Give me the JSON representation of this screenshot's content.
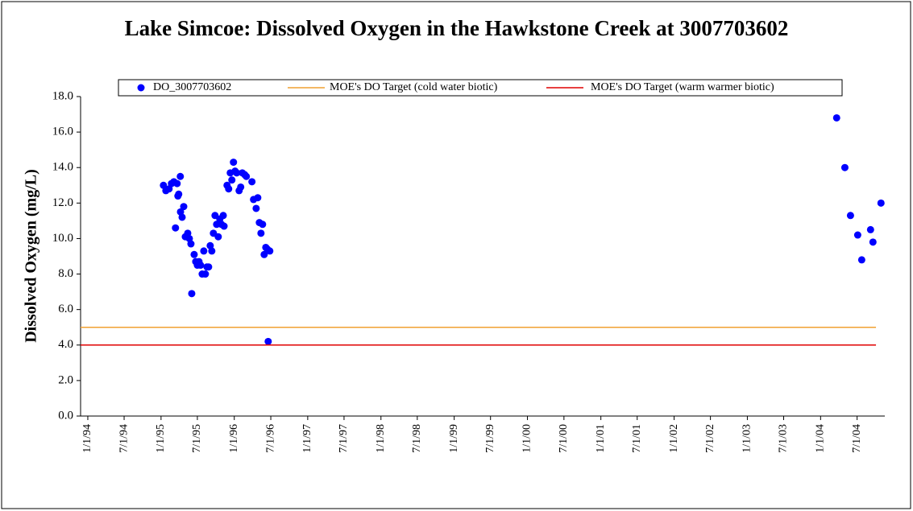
{
  "chart_data": {
    "type": "scatter",
    "title": "Lake Simcoe: Dissolved Oxygen in the Hawkstone Creek at 3007703602",
    "ylabel": "Dissolved Oxygen (mg/L)",
    "legend": "top",
    "grid": false,
    "xlim": [
      "1993-11-26",
      "2004-11-16"
    ],
    "ylim": [
      0,
      18
    ],
    "yticks": [
      {
        "value": 0,
        "label": "0.0"
      },
      {
        "value": 2,
        "label": "2.0"
      },
      {
        "value": 4,
        "label": "4.0"
      },
      {
        "value": 6,
        "label": "6.0"
      },
      {
        "value": 8,
        "label": "8.0"
      },
      {
        "value": 10,
        "label": "10.0"
      },
      {
        "value": 12,
        "label": "12.0"
      },
      {
        "value": 14,
        "label": "14.0"
      },
      {
        "value": 16,
        "label": "16.0"
      },
      {
        "value": 18,
        "label": "18.0"
      }
    ],
    "xticks": [
      {
        "value": "1994-01-01",
        "label": "1/1/94"
      },
      {
        "value": "1994-07-01",
        "label": "7/1/94"
      },
      {
        "value": "1995-01-01",
        "label": "1/1/95"
      },
      {
        "value": "1995-07-01",
        "label": "7/1/95"
      },
      {
        "value": "1996-01-01",
        "label": "1/1/96"
      },
      {
        "value": "1996-07-01",
        "label": "7/1/96"
      },
      {
        "value": "1997-01-01",
        "label": "1/1/97"
      },
      {
        "value": "1997-07-01",
        "label": "7/1/97"
      },
      {
        "value": "1998-01-01",
        "label": "1/1/98"
      },
      {
        "value": "1998-07-01",
        "label": "7/1/98"
      },
      {
        "value": "1999-01-01",
        "label": "1/1/99"
      },
      {
        "value": "1999-07-01",
        "label": "7/1/99"
      },
      {
        "value": "2000-01-01",
        "label": "1/1/00"
      },
      {
        "value": "2000-07-01",
        "label": "7/1/00"
      },
      {
        "value": "2001-01-01",
        "label": "1/1/01"
      },
      {
        "value": "2001-07-01",
        "label": "7/1/01"
      },
      {
        "value": "2002-01-01",
        "label": "1/1/02"
      },
      {
        "value": "2002-07-01",
        "label": "7/1/02"
      },
      {
        "value": "2003-01-01",
        "label": "1/1/03"
      },
      {
        "value": "2003-07-01",
        "label": "7/1/03"
      },
      {
        "value": "2004-01-01",
        "label": "1/1/04"
      },
      {
        "value": "2004-07-01",
        "label": "7/1/04"
      }
    ],
    "series": [
      {
        "name": "DO_3007703602",
        "type": "scatter",
        "color": "#0000ff",
        "x": [
          "1995-01-13",
          "1995-01-25",
          "1995-02-10",
          "1995-02-22",
          "1995-03-06",
          "1995-03-22",
          "1995-03-14",
          "1995-03-26",
          "1995-03-30",
          "1995-04-07",
          "1995-04-08",
          "1995-04-16",
          "1995-04-24",
          "1995-05-02",
          "1995-05-14",
          "1995-05-22",
          "1995-05-30",
          "1995-06-03",
          "1995-06-15",
          "1995-06-23",
          "1995-07-01",
          "1995-07-09",
          "1995-07-17",
          "1995-07-25",
          "1995-08-02",
          "1995-08-10",
          "1995-08-18",
          "1995-08-26",
          "1995-09-03",
          "1995-09-11",
          "1995-09-19",
          "1995-09-27",
          "1995-10-05",
          "1995-10-13",
          "1995-10-21",
          "1995-10-29",
          "1995-11-07",
          "1995-11-11",
          "1995-11-26",
          "1995-12-04",
          "1995-12-12",
          "1995-12-20",
          "1995-12-28",
          "1996-01-05",
          "1996-01-13",
          "1996-01-25",
          "1996-02-02",
          "1996-02-10",
          "1996-02-22",
          "1996-03-01",
          "1996-03-29",
          "1996-04-06",
          "1996-04-19",
          "1996-04-27",
          "1996-05-05",
          "1996-05-13",
          "1996-05-21",
          "1996-05-29",
          "1996-06-06",
          "1996-06-14",
          "1996-06-18",
          "1996-06-26",
          "2004-03-21",
          "2004-05-01",
          "2004-05-29",
          "2004-07-04",
          "2004-07-24",
          "2004-09-06",
          "2004-09-18",
          "2004-10-28"
        ],
        "values": [
          13.0,
          12.7,
          12.8,
          13.1,
          13.2,
          13.1,
          10.6,
          12.4,
          12.5,
          13.5,
          11.5,
          11.2,
          11.8,
          10.1,
          10.3,
          10.0,
          9.7,
          6.9,
          9.1,
          8.7,
          8.5,
          8.7,
          8.5,
          8.0,
          9.3,
          8.0,
          8.4,
          8.4,
          9.6,
          9.3,
          10.3,
          11.3,
          10.8,
          10.1,
          11.1,
          10.8,
          11.3,
          10.7,
          13.0,
          12.8,
          13.7,
          13.3,
          14.3,
          13.8,
          13.7,
          12.7,
          12.9,
          13.7,
          13.6,
          13.5,
          13.2,
          12.2,
          11.7,
          12.3,
          10.9,
          10.3,
          10.8,
          9.1,
          9.5,
          9.4,
          4.2,
          9.3,
          16.8,
          14.0,
          11.3,
          10.2,
          8.8,
          10.5,
          9.8,
          12.0
        ]
      },
      {
        "name": "MOE's DO Target (cold water biotic)",
        "type": "line",
        "color": "#f0a030",
        "x": [
          "1993-11-26",
          "2004-10-03"
        ],
        "values": [
          5,
          5
        ]
      },
      {
        "name": "MOE's DO Target (warm warmer biotic)",
        "type": "line",
        "color": "#e00000",
        "x": [
          "1993-11-26",
          "2004-10-03"
        ],
        "values": [
          4,
          4
        ]
      }
    ]
  }
}
